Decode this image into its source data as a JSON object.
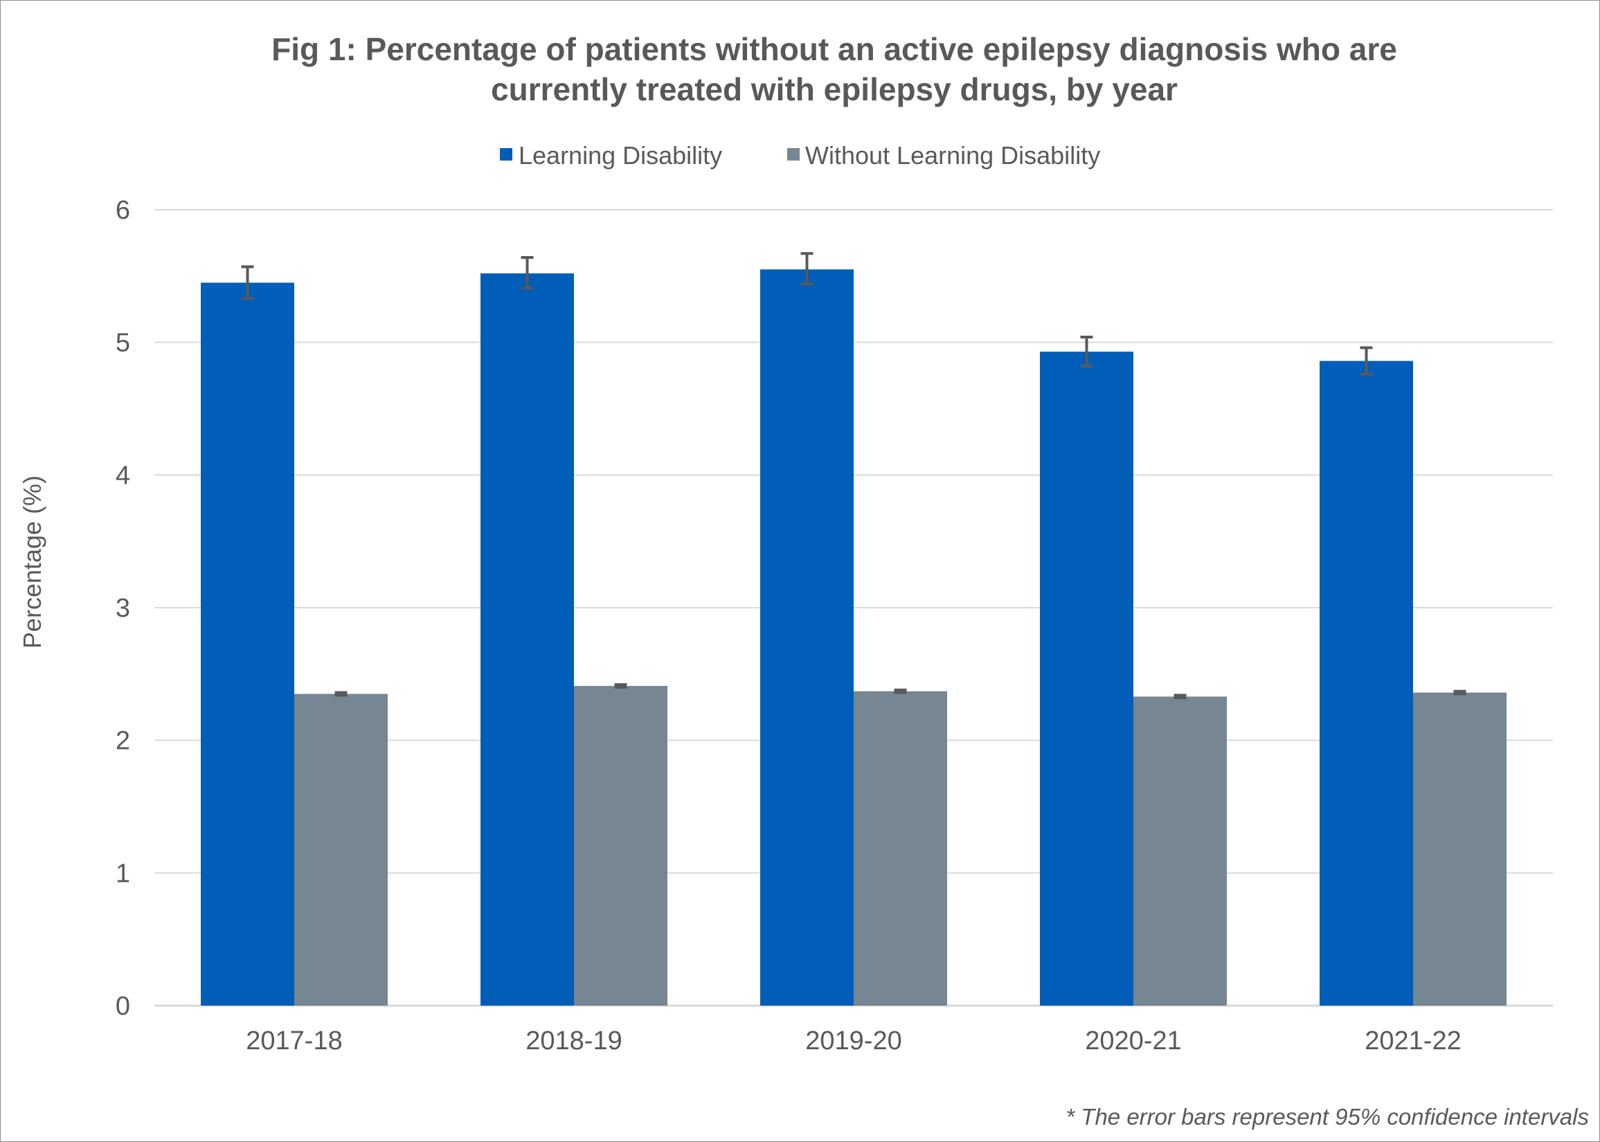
{
  "chart_data": {
    "type": "bar",
    "title_line1": "Fig 1: Percentage of patients without an active epilepsy diagnosis who are",
    "title_line2": "currently treated with epilepsy drugs, by year",
    "ylabel": "Percentage (%)",
    "xlabel": "",
    "ylim": [
      0,
      6
    ],
    "yticks": [
      "0",
      "1",
      "2",
      "3",
      "4",
      "5",
      "6"
    ],
    "grid": true,
    "legend_position": "top",
    "categories": [
      "2017-18",
      "2018-19",
      "2019-20",
      "2020-21",
      "2021-22"
    ],
    "series": [
      {
        "name": "Learning Disability",
        "color": "#005EB8",
        "values": [
          5.45,
          5.52,
          5.55,
          4.93,
          4.86
        ],
        "error_low": [
          5.33,
          5.41,
          5.44,
          4.82,
          4.76
        ],
        "error_high": [
          5.57,
          5.64,
          5.67,
          5.04,
          4.96
        ]
      },
      {
        "name": "Without Learning Disability",
        "color": "#768692",
        "values": [
          2.35,
          2.41,
          2.37,
          2.33,
          2.36
        ],
        "error_low": [
          2.34,
          2.4,
          2.36,
          2.32,
          2.35
        ],
        "error_high": [
          2.36,
          2.42,
          2.38,
          2.34,
          2.37
        ]
      }
    ],
    "footnote": "* The error bars represent 95% confidence intervals",
    "colors": {
      "text": "#595959",
      "grid": "#d9d9d9",
      "axis": "#d9d9d9",
      "error_bar": "#595959",
      "border": "#8f8f8f"
    }
  }
}
